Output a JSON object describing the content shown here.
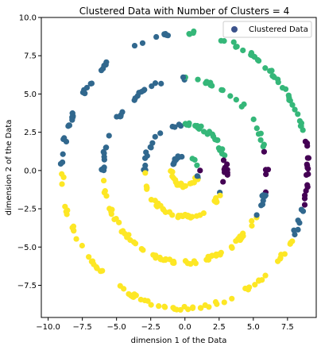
{
  "chart_data": {
    "type": "scatter",
    "title": "Clustered Data with Number of Clusters = 4",
    "xlabel": "dimension 1 of the Data",
    "ylabel": "dimension 2 of the Data",
    "xlim": [
      -10.5,
      9.6
    ],
    "ylim": [
      -9.6,
      10.0
    ],
    "xticks": [
      -10.0,
      -7.5,
      -5.0,
      -2.5,
      0.0,
      2.5,
      5.0,
      7.5
    ],
    "xtick_labels": [
      "−10.0",
      "−7.5",
      "−5.0",
      "−2.5",
      "0.0",
      "2.5",
      "5.0",
      "7.5"
    ],
    "yticks": [
      -7.5,
      -5.0,
      -2.5,
      0.0,
      2.5,
      5.0,
      7.5,
      10.0
    ],
    "ytick_labels": [
      "−7.5",
      "−5.0",
      "−2.5",
      "0.0",
      "2.5",
      "5.0",
      "7.5",
      "10.0"
    ],
    "grid": false,
    "legend": {
      "label": "Clustered Data",
      "placement": "top-right",
      "marker_color": "#3b528b"
    },
    "colors": {
      "purple": "#440154",
      "blue": "#31688e",
      "green": "#35b779",
      "yellow": "#fde725"
    },
    "rings": [
      {
        "radius": 1.0,
        "center_x": 0.0,
        "center_y": 0.0,
        "points": 40
      },
      {
        "radius": 3.0,
        "center_x": 0.0,
        "center_y": 0.0,
        "points": 90
      },
      {
        "radius": 6.0,
        "center_x": 0.0,
        "center_y": 0.0,
        "points": 130
      },
      {
        "radius": 9.0,
        "center_x": 0.0,
        "center_y": 0.0,
        "points": 170
      }
    ],
    "cluster_angle_ranges_deg": [
      {
        "cluster": "purple",
        "from": -15,
        "to": 15
      },
      {
        "cluster": "green",
        "from": 15,
        "to": 90
      },
      {
        "cluster": "blue",
        "from": 90,
        "to": 180
      },
      {
        "cluster": "yellow",
        "from": 180,
        "to": 330
      },
      {
        "cluster": "blue",
        "from": 300,
        "to": 345
      },
      {
        "cluster": "green",
        "from": 345,
        "to": 360
      }
    ]
  }
}
